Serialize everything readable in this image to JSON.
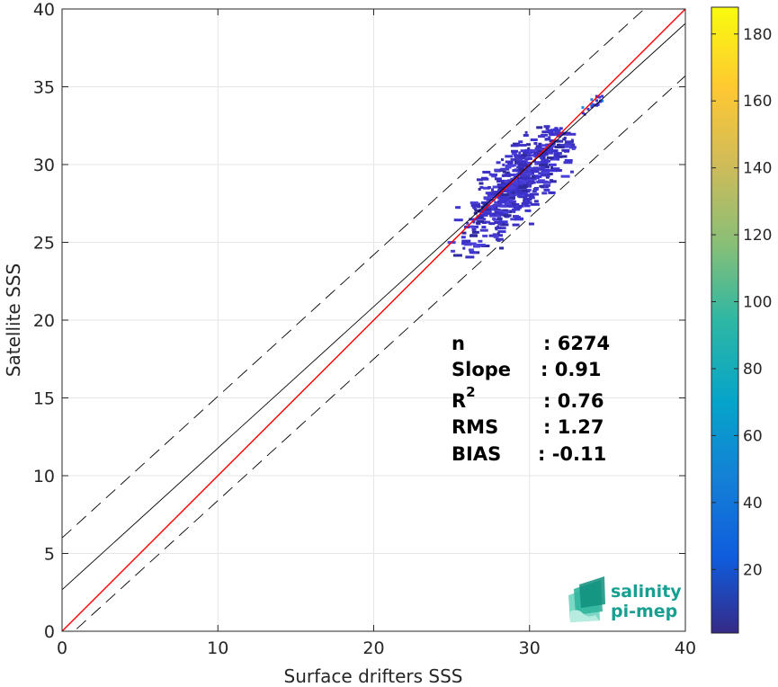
{
  "chart_data": {
    "type": "heatmap",
    "xlabel": "Surface drifters SSS",
    "ylabel": "Satellite SSS",
    "xlim": [
      0,
      40
    ],
    "ylim": [
      0,
      40
    ],
    "xticks": [
      "0",
      "10",
      "20",
      "30",
      "40"
    ],
    "yticks": [
      "0",
      "5",
      "10",
      "15",
      "20",
      "25",
      "30",
      "35",
      "40"
    ],
    "grid": true,
    "colorbar": {
      "range": [
        1,
        188
      ],
      "ticks": [
        "20",
        "40",
        "60",
        "80",
        "100",
        "120",
        "140",
        "160",
        "180"
      ],
      "tick_values": [
        20,
        40,
        60,
        80,
        100,
        120,
        140,
        160,
        180
      ],
      "colormap": "parula"
    },
    "lines": [
      {
        "kind": "identity",
        "color": "#ff0000",
        "intercept": 0,
        "slope": 1
      },
      {
        "kind": "fit",
        "color": "#000000",
        "intercept": 2.67,
        "slope": 0.91
      },
      {
        "kind": "upper-bound",
        "color": "#000000",
        "dashed": true,
        "intercept": 6.0,
        "slope": 0.91
      },
      {
        "kind": "lower-bound",
        "color": "#000000",
        "dashed": true,
        "intercept": -0.7,
        "slope": 0.91
      }
    ],
    "density_cluster": {
      "x_range": [
        23.5,
        34.5
      ],
      "y_range": [
        23.5,
        34.5
      ],
      "note_values": "low counts, mostly 1-20"
    },
    "stats": [
      {
        "label": "n",
        "value": ": 6274"
      },
      {
        "label": "Slope",
        "value": ": 0.91"
      },
      {
        "label": "R",
        "sup": "2",
        "value": ": 0.76"
      },
      {
        "label": "RMS",
        "value": ": 1.27"
      },
      {
        "label": "BIAS",
        "value": ": -0.11"
      }
    ]
  },
  "logo": {
    "line1": "salinity",
    "line2": "pi-mep",
    "color": "#17a091"
  }
}
